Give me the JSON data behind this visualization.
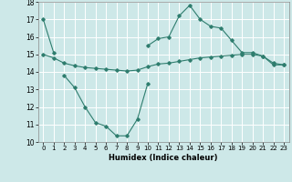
{
  "xlabel": "Humidex (Indice chaleur)",
  "background_color": "#cde8e8",
  "grid_color": "#ffffff",
  "line_color": "#2e7d6e",
  "xlim": [
    -0.5,
    23.5
  ],
  "ylim": [
    10,
    18
  ],
  "yticks": [
    10,
    11,
    12,
    13,
    14,
    15,
    16,
    17,
    18
  ],
  "xticks": [
    0,
    1,
    2,
    3,
    4,
    5,
    6,
    7,
    8,
    9,
    10,
    11,
    12,
    13,
    14,
    15,
    16,
    17,
    18,
    19,
    20,
    21,
    22,
    23
  ],
  "series1_x": [
    0,
    1,
    2,
    3,
    4,
    5,
    6,
    7,
    8,
    9,
    10,
    11,
    12,
    13,
    14,
    15,
    16,
    17,
    18,
    19,
    20,
    21,
    22,
    23
  ],
  "series1_y": [
    17.0,
    15.1,
    null,
    null,
    null,
    null,
    null,
    null,
    null,
    null,
    15.5,
    15.9,
    16.0,
    17.2,
    17.8,
    17.0,
    16.6,
    16.5,
    15.8,
    15.1,
    15.1,
    14.9,
    14.4,
    14.4
  ],
  "series2_x": [
    0,
    1,
    2,
    3,
    4,
    5,
    6,
    7,
    8,
    9,
    10,
    11,
    12,
    13,
    14,
    15,
    16,
    17,
    18,
    19,
    20,
    21,
    22,
    23
  ],
  "series2_y": [
    15.0,
    14.8,
    14.5,
    14.35,
    14.25,
    14.2,
    14.15,
    14.1,
    14.05,
    14.1,
    14.3,
    14.45,
    14.5,
    14.6,
    14.7,
    14.8,
    14.85,
    14.9,
    14.95,
    15.0,
    15.0,
    14.9,
    14.5,
    14.4
  ],
  "series3_x": [
    0,
    1,
    2,
    3,
    4,
    5,
    6,
    7,
    8,
    9,
    10,
    11,
    12,
    13,
    14,
    15,
    16,
    17,
    18,
    19,
    20,
    21,
    22,
    23
  ],
  "series3_y": [
    null,
    null,
    13.8,
    13.1,
    12.0,
    11.1,
    10.9,
    10.35,
    10.35,
    11.3,
    13.35,
    null,
    null,
    null,
    null,
    null,
    null,
    null,
    null,
    null,
    null,
    null,
    null,
    null
  ]
}
